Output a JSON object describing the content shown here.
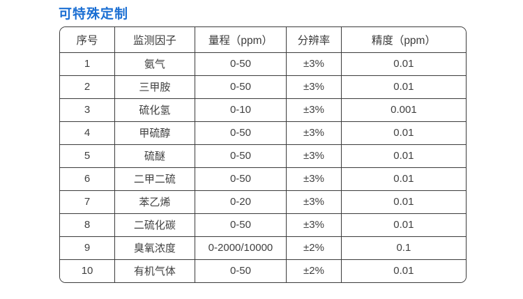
{
  "page": {
    "title": "可特殊定制"
  },
  "colors": {
    "accent_blue": "#1b6fd3",
    "border": "#3a3a3a",
    "text": "#404040",
    "background": "#ffffff"
  },
  "table": {
    "headers": [
      "序号",
      "监测因子",
      "量程（ppm）",
      "分辨率",
      "精度（ppm）"
    ],
    "rows": [
      [
        "1",
        "氨气",
        "0-50",
        "±3%",
        "0.01"
      ],
      [
        "2",
        "三甲胺",
        "0-50",
        "±3%",
        "0.01"
      ],
      [
        "3",
        "硫化氢",
        "0-10",
        "±3%",
        "0.001"
      ],
      [
        "4",
        "甲硫醇",
        "0-50",
        "±3%",
        "0.01"
      ],
      [
        "5",
        "硫醚",
        "0-50",
        "±3%",
        "0.01"
      ],
      [
        "6",
        "二甲二硫",
        "0-50",
        "±3%",
        "0.01"
      ],
      [
        "7",
        "苯乙烯",
        "0-20",
        "±3%",
        "0.01"
      ],
      [
        "8",
        "二硫化碳",
        "0-50",
        "±3%",
        "0.01"
      ],
      [
        "9",
        "臭氧浓度",
        "0-2000/10000",
        "±2%",
        "0.1"
      ],
      [
        "10",
        "有机气体",
        "0-50",
        "±2%",
        "0.01"
      ]
    ]
  }
}
